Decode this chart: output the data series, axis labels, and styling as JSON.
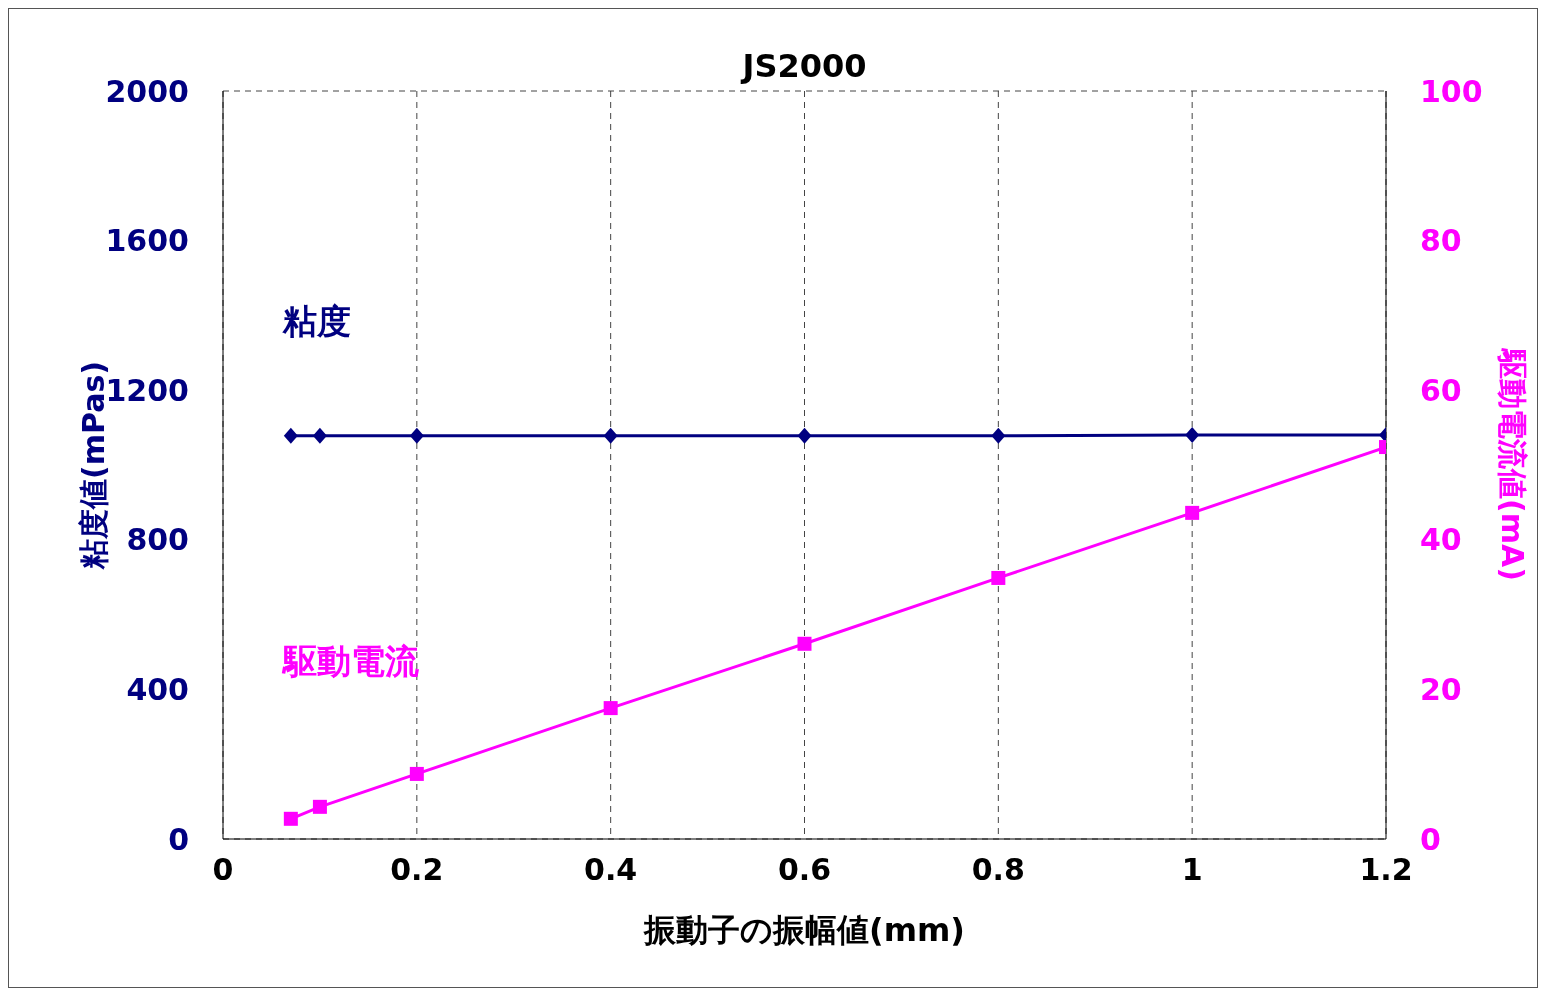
{
  "chart_data": {
    "type": "line",
    "title": "JS2000",
    "xlabel": "振動子の振幅値(mm)",
    "ylabel": "粘度値(mPas)",
    "y2label": "駆動電流値(mA)",
    "x": [
      0.07,
      0.1,
      0.2,
      0.4,
      0.6,
      0.8,
      1.0,
      1.2
    ],
    "series": [
      {
        "name": "粘度",
        "color": "#000080",
        "marker": "diamond",
        "values": [
          1078,
          1078,
          1078,
          1078,
          1078,
          1078,
          1080,
          1080
        ]
      },
      {
        "name": "駆動電流",
        "color": "#ff00ff",
        "marker": "square",
        "axis": "y2",
        "values": [
          2.7,
          4.3,
          8.7,
          17.5,
          26.1,
          34.9,
          43.6,
          52.4
        ]
      }
    ],
    "xlim": [
      0,
      1.2
    ],
    "xticks": [
      0,
      0.2,
      0.4,
      0.6,
      0.8,
      1,
      1.2
    ],
    "ylim": [
      0,
      2000
    ],
    "yticks": [
      0,
      400,
      800,
      1200,
      1600,
      2000
    ],
    "y2lim": [
      0,
      100
    ],
    "y2ticks": [
      0,
      20,
      40,
      60,
      80,
      100
    ],
    "grid": true,
    "line_style": "solid"
  }
}
